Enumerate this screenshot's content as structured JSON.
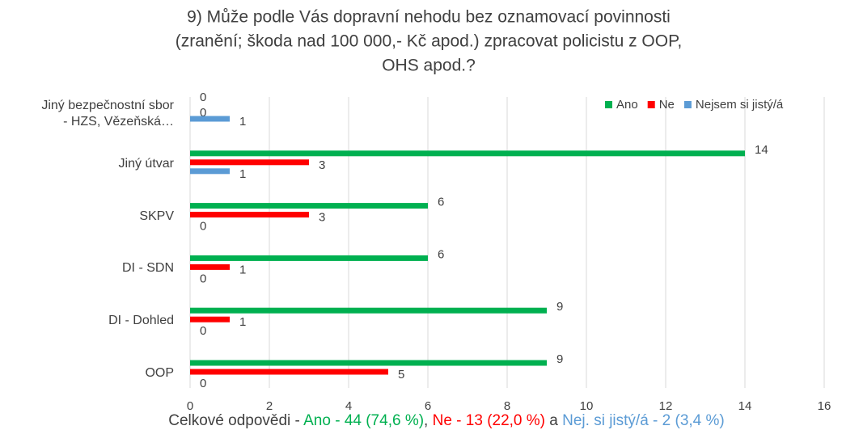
{
  "chart_data": {
    "type": "bar",
    "orientation": "horizontal",
    "title": [
      "9) Může podle Vás dopravní nehodu bez oznamovací povinnosti",
      "(zranění; škoda nad 100 000,- Kč apod.) zpracovat policistu z OOP,",
      "OHS apod.?"
    ],
    "categories": [
      "Jiný bezpečnostní sbor\n- HZS, Vězeňská…",
      "Jiný útvar",
      "SKPV",
      "DI - SDN",
      "DI - Dohled",
      "OOP"
    ],
    "series": [
      {
        "name": "Ano",
        "color": "#00b050",
        "values": [
          0,
          14,
          6,
          6,
          9,
          9
        ]
      },
      {
        "name": "Ne",
        "color": "#ff0000",
        "values": [
          0,
          3,
          3,
          1,
          1,
          5
        ]
      },
      {
        "name": "Nejsem si jistý/á",
        "color": "#5b9bd5",
        "values": [
          1,
          1,
          0,
          0,
          0,
          0
        ]
      }
    ],
    "xlim": [
      0,
      16
    ],
    "xticks": [
      0,
      2,
      4,
      6,
      8,
      10,
      12,
      14,
      16
    ],
    "grid": true,
    "legend": "top-right",
    "footer": [
      {
        "text": "Celkové odpovědi - ",
        "color": "#404040"
      },
      {
        "text": "Ano - 44 (74,6 %)",
        "color": "#00b050"
      },
      {
        "text": ", ",
        "color": "#404040"
      },
      {
        "text": "Ne - 13 (22,0 %)",
        "color": "#ff0000"
      },
      {
        "text": " a ",
        "color": "#404040"
      },
      {
        "text": "Nej. si jistý/á - 2 (3,4 %)",
        "color": "#5b9bd5"
      }
    ]
  }
}
